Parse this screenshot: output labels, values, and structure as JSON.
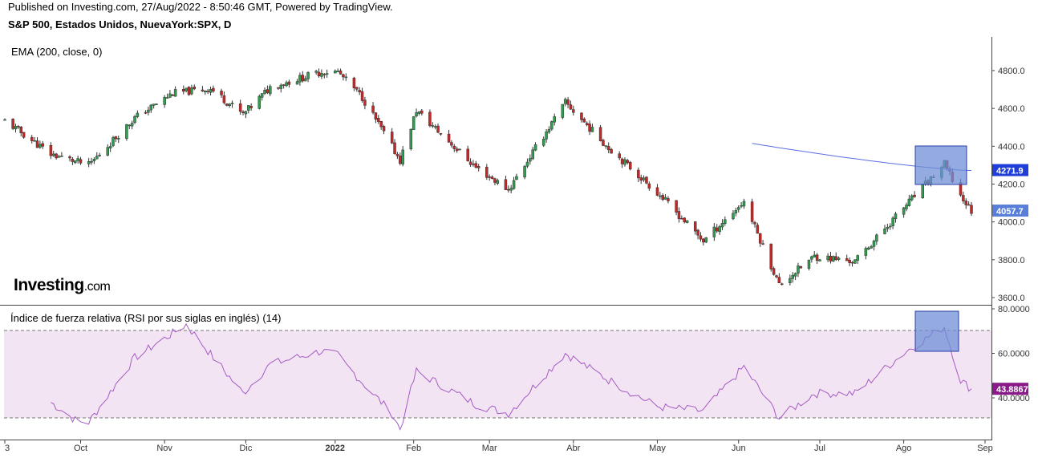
{
  "header": {
    "published": "Published on Investing.com, 27/Aug/2022 - 8:50:46 GMT, Powered by TradingView.",
    "symbol": "S&P 500, Estados Unidos, NuevaYork:SPX, D"
  },
  "indicators": {
    "ema_label": "EMA (200, close, 0)",
    "rsi_label": "Índice de fuerza relativa (RSI por sus siglas en inglés) (14)"
  },
  "logo": {
    "main": "Investing",
    "suffix": ".com"
  },
  "colors": {
    "up": "#2e9d4e",
    "down": "#c62828",
    "ema": "#5b6ee1",
    "rsi": "#a45bc2",
    "rsi_band": "#f3e4f3",
    "price_tag": "#1f3fd8",
    "close_tag": "#5a7fd8",
    "rsi_tag": "#8a1a8a",
    "highlight": "#6f8fd6"
  },
  "chart_data": [
    {
      "type": "candlestick",
      "title": "S&P 500, Estados Unidos, NuevaYork:SPX, D",
      "x_axis": {
        "labels": [
          "3",
          "Oct",
          "Nov",
          "Dic",
          "2022",
          "Feb",
          "Mar",
          "Abr",
          "May",
          "Jun",
          "Jul",
          "Ago",
          "Sep"
        ],
        "range": [
          "2021-09-03",
          "2022-09-01"
        ]
      },
      "y_axis": {
        "ticks": [
          "4800.0",
          "4600.0",
          "4400.0",
          "4200.0",
          "4000.0",
          "3800.0",
          "3600.0"
        ],
        "ylim": [
          3560,
          4870
        ]
      },
      "close_path": [
        [
          "2021-09-03",
          4535
        ],
        [
          "2021-09-20",
          4358
        ],
        [
          "2021-10-04",
          4300
        ],
        [
          "2021-10-21",
          4550
        ],
        [
          "2021-11-04",
          4680
        ],
        [
          "2021-11-18",
          4704
        ],
        [
          "2021-11-30",
          4567
        ],
        [
          "2021-12-10",
          4712
        ],
        [
          "2021-12-29",
          4793
        ],
        [
          "2022-01-04",
          4793
        ],
        [
          "2022-01-13",
          4659
        ],
        [
          "2022-01-27",
          4326
        ],
        [
          "2022-02-02",
          4589
        ],
        [
          "2022-02-24",
          4288
        ],
        [
          "2022-03-08",
          4170
        ],
        [
          "2022-03-29",
          4631
        ],
        [
          "2022-04-14",
          4392
        ],
        [
          "2022-05-02",
          4155
        ],
        [
          "2022-05-19",
          3900
        ],
        [
          "2022-06-03",
          4108
        ],
        [
          "2022-06-16",
          3667
        ],
        [
          "2022-06-29",
          3818
        ],
        [
          "2022-07-14",
          3790
        ],
        [
          "2022-08-02",
          4091
        ],
        [
          "2022-08-16",
          4305
        ],
        [
          "2022-08-22",
          4138
        ],
        [
          "2022-08-26",
          4057.7
        ]
      ],
      "ema200": {
        "name": "EMA (200, close, 0)",
        "start": [
          "2022-06-06",
          4415
        ],
        "end": [
          "2022-08-26",
          4271.9
        ]
      },
      "last_values": {
        "ema": "4271.9",
        "close": "4057.7"
      }
    },
    {
      "type": "line",
      "title": "Índice de fuerza relativa (RSI por sus siglas en inglés) (14)",
      "y_axis": {
        "ticks": [
          "80.0000",
          "60.0000",
          "40.0000"
        ],
        "ylim": [
          24,
          81
        ]
      },
      "band": [
        30,
        70
      ],
      "series": [
        {
          "values": [
            [
              "2021-09-20",
              38
            ],
            [
              "2021-09-29",
              30
            ],
            [
              "2021-10-04",
              29
            ],
            [
              "2021-10-21",
              58
            ],
            [
              "2021-11-04",
              69
            ],
            [
              "2021-11-09",
              73
            ],
            [
              "2021-11-15",
              64
            ],
            [
              "2021-11-30",
              42
            ],
            [
              "2021-12-10",
              55
            ],
            [
              "2021-12-29",
              61
            ],
            [
              "2022-01-04",
              59
            ],
            [
              "2022-01-13",
              47
            ],
            [
              "2022-01-24",
              33
            ],
            [
              "2022-01-27",
              26
            ],
            [
              "2022-02-02",
              52
            ],
            [
              "2022-02-24",
              37
            ],
            [
              "2022-03-08",
              33
            ],
            [
              "2022-03-29",
              60
            ],
            [
              "2022-04-14",
              48
            ],
            [
              "2022-05-02",
              36
            ],
            [
              "2022-05-19",
              34
            ],
            [
              "2022-06-03",
              54
            ],
            [
              "2022-06-16",
              31
            ],
            [
              "2022-06-29",
              42
            ],
            [
              "2022-07-14",
              42
            ],
            [
              "2022-08-02",
              61
            ],
            [
              "2022-08-16",
              72
            ],
            [
              "2022-08-22",
              48
            ],
            [
              "2022-08-26",
              43.8867
            ]
          ]
        }
      ],
      "last_value": "43.8867"
    }
  ]
}
